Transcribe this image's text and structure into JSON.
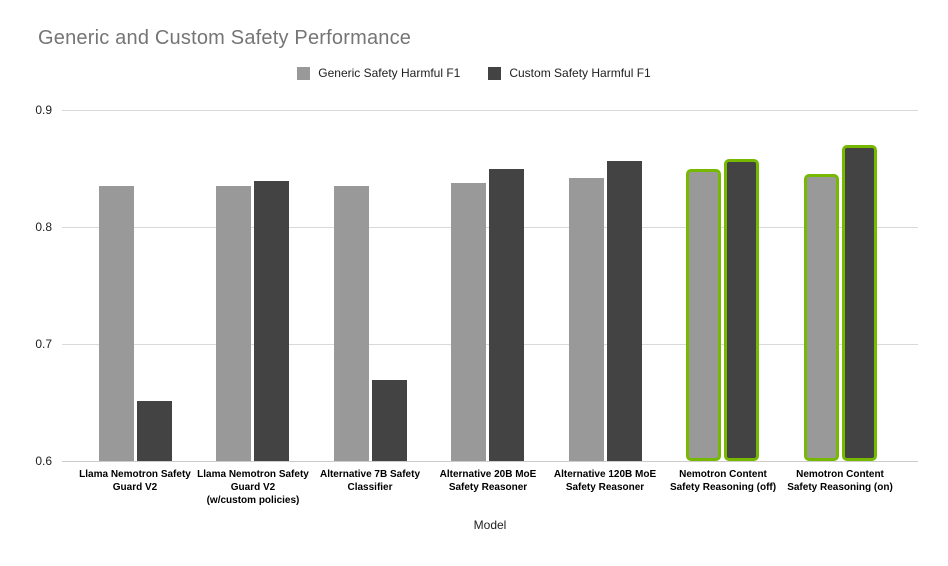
{
  "title": "Generic and Custom Safety Performance",
  "legend": {
    "items": [
      {
        "label": "Generic Safety Harmful F1",
        "color": "#999999"
      },
      {
        "label": "Custom Safety Harmful F1",
        "color": "#434343"
      }
    ]
  },
  "colors": {
    "generic_series": "#999999",
    "custom_series": "#434343",
    "highlight_outline": "#76b900",
    "gridline": "#d9d9d9",
    "title_text": "#757575"
  },
  "chart_data": {
    "type": "bar",
    "title": "Generic and Custom Safety Performance",
    "xlabel": "Model",
    "ylabel": "",
    "ylim": [
      0.6,
      0.9
    ],
    "y_ticks": [
      0.9,
      0.8,
      0.7,
      0.6
    ],
    "grid": "horizontal",
    "legend_position": "top",
    "categories": [
      "Llama Nemotron Safety Guard V2",
      "Llama Nemotron Safety Guard V2 (w/custom policies)",
      "Alternative 7B Safety Classifier",
      "Alternative 20B MoE Safety Reasoner",
      "Alternative 120B MoE Safety Reasoner",
      "Nemotron Content Safety Reasoning (off)",
      "Nemotron Content Safety Reasoning (on)"
    ],
    "category_label_lines": [
      [
        "Llama Nemotron Safety",
        "Guard V2"
      ],
      [
        "Llama Nemotron Safety",
        "Guard V2",
        "(w/custom policies)"
      ],
      [
        "Alternative 7B Safety",
        "Classifier"
      ],
      [
        "Alternative 20B MoE",
        "Safety Reasoner"
      ],
      [
        "Alternative 120B MoE",
        "Safety Reasoner"
      ],
      [
        "Nemotron Content",
        "Safety Reasoning (off)"
      ],
      [
        "Nemotron Content",
        "Safety Reasoning (on)"
      ]
    ],
    "series": [
      {
        "name": "Generic Safety Harmful F1",
        "color": "#999999",
        "values": [
          0.835,
          0.835,
          0.835,
          0.838,
          0.842,
          0.85,
          0.845
        ]
      },
      {
        "name": "Custom Safety Harmful F1",
        "color": "#434343",
        "values": [
          0.651,
          0.839,
          0.669,
          0.85,
          0.856,
          0.858,
          0.87
        ]
      }
    ],
    "highlighted": [
      false,
      false,
      false,
      false,
      false,
      true,
      true
    ],
    "highlight_outline_color": "#76b900"
  }
}
